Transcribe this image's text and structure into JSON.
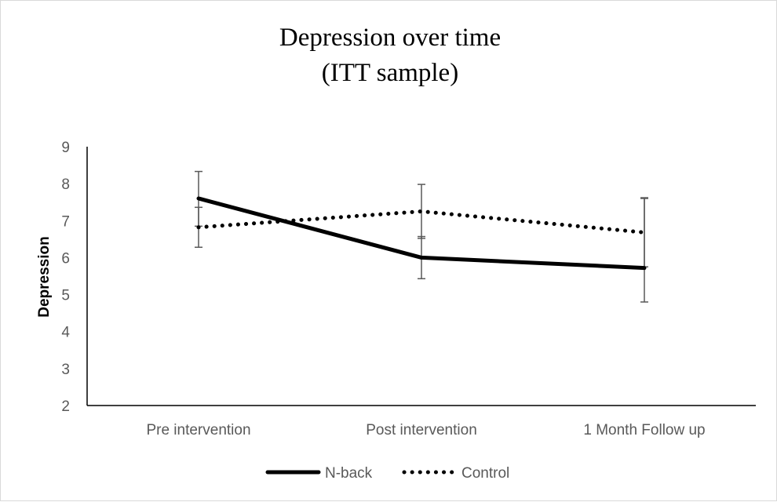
{
  "chart_data": {
    "type": "line",
    "title_lines": [
      "Depression over time",
      "(ITT sample)"
    ],
    "xlabel": "",
    "ylabel": "Depression",
    "ylim": [
      2,
      9
    ],
    "yticks": [
      2,
      3,
      4,
      5,
      6,
      7,
      8,
      9
    ],
    "categories": [
      "Pre intervention",
      "Post intervention",
      "1 Month Follow up"
    ],
    "grid": false,
    "legend_position": "bottom",
    "series": [
      {
        "name": "N-back",
        "style": "solid",
        "color": "#000000",
        "values": [
          7.6,
          6.0,
          5.72
        ],
        "error_low": [
          6.85,
          5.43,
          4.8
        ],
        "error_high": [
          8.33,
          6.57,
          7.6
        ]
      },
      {
        "name": "Control",
        "style": "dotted",
        "color": "#000000",
        "values": [
          6.82,
          7.25,
          6.68
        ],
        "error_low": [
          6.28,
          6.52,
          5.75
        ],
        "error_high": [
          7.36,
          7.98,
          7.62
        ]
      }
    ]
  }
}
